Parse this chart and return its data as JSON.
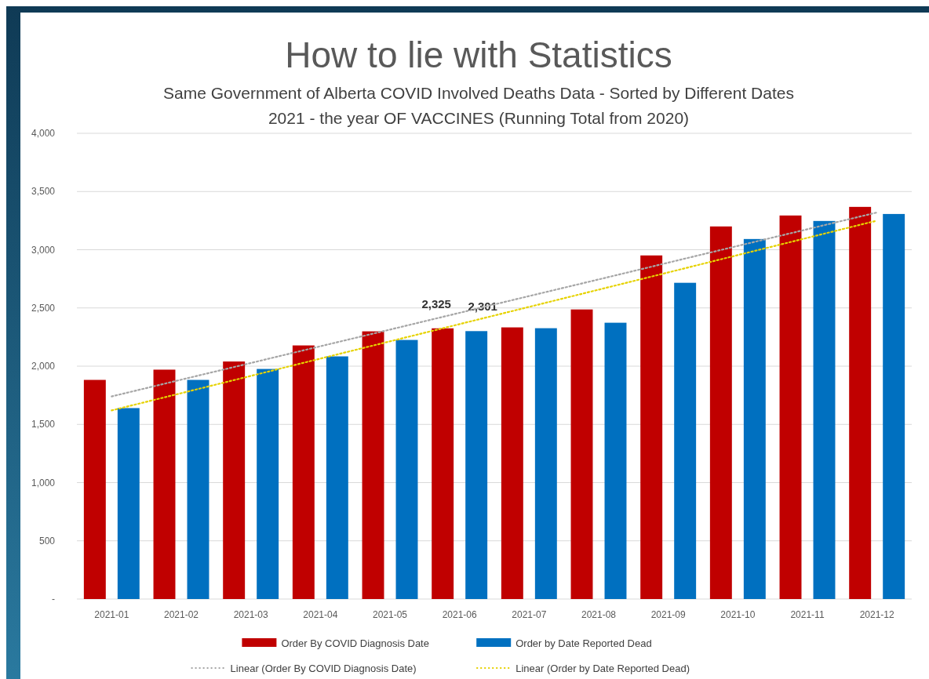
{
  "chart_data": {
    "type": "bar",
    "title": "How to lie with Statistics",
    "subtitle": "Same Government of Alberta COVID Involved Deaths Data - Sorted by Different Dates\n2021 - the year OF VACCINES (Running Total from 2020)",
    "categories": [
      "2021-01",
      "2021-02",
      "2021-03",
      "2021-04",
      "2021-05",
      "2021-06",
      "2021-07",
      "2021-08",
      "2021-09",
      "2021-10",
      "2021-11",
      "2021-12"
    ],
    "series": [
      {
        "name": "Order By COVID Diagnosis Date",
        "color": "#c00000",
        "values": [
          1882,
          1970,
          2040,
          2178,
          2299,
          2325,
          2333,
          2487,
          2951,
          3200,
          3294,
          3368
        ],
        "value_labels": [
          null,
          null,
          null,
          null,
          null,
          "2,325",
          null,
          null,
          null,
          null,
          null,
          null
        ]
      },
      {
        "name": "Order by Date Reported Dead",
        "color": "#0070c0",
        "values": [
          1640,
          1882,
          1976,
          2084,
          2225,
          2301,
          2326,
          2373,
          2716,
          3092,
          3247,
          3307
        ],
        "value_labels": [
          null,
          null,
          null,
          null,
          null,
          "2,301",
          null,
          null,
          null,
          null,
          null,
          null
        ]
      },
      {
        "name": "Linear (Order By COVID Diagnosis Date)",
        "type": "line",
        "line_style": "dotted",
        "color": "#a6a6a6",
        "values": [
          1740,
          1884,
          2027,
          2171,
          2314,
          2458,
          2602,
          2745,
          2889,
          3033,
          3176,
          3320
        ]
      },
      {
        "name": "Linear (Order by Date Reported Dead)",
        "type": "line",
        "line_style": "dotted",
        "color": "#e6d200",
        "values": [
          1620,
          1768,
          1916,
          2065,
          2213,
          2361,
          2509,
          2657,
          2805,
          2954,
          3102,
          3250
        ]
      }
    ],
    "ylim": [
      0,
      4000
    ],
    "yticks": [
      {
        "value": 0,
        "label": "-"
      },
      500,
      {
        "value": 1000,
        "label": "1,000"
      },
      {
        "value": 1500,
        "label": "1,500"
      },
      {
        "value": 2000,
        "label": "2,000"
      },
      {
        "value": 2500,
        "label": "2,500"
      },
      {
        "value": 3000,
        "label": "3,000"
      },
      {
        "value": 3500,
        "label": "3,500"
      },
      {
        "value": 4000,
        "label": "4,000"
      }
    ],
    "grid": "y",
    "legend": "bottom"
  }
}
